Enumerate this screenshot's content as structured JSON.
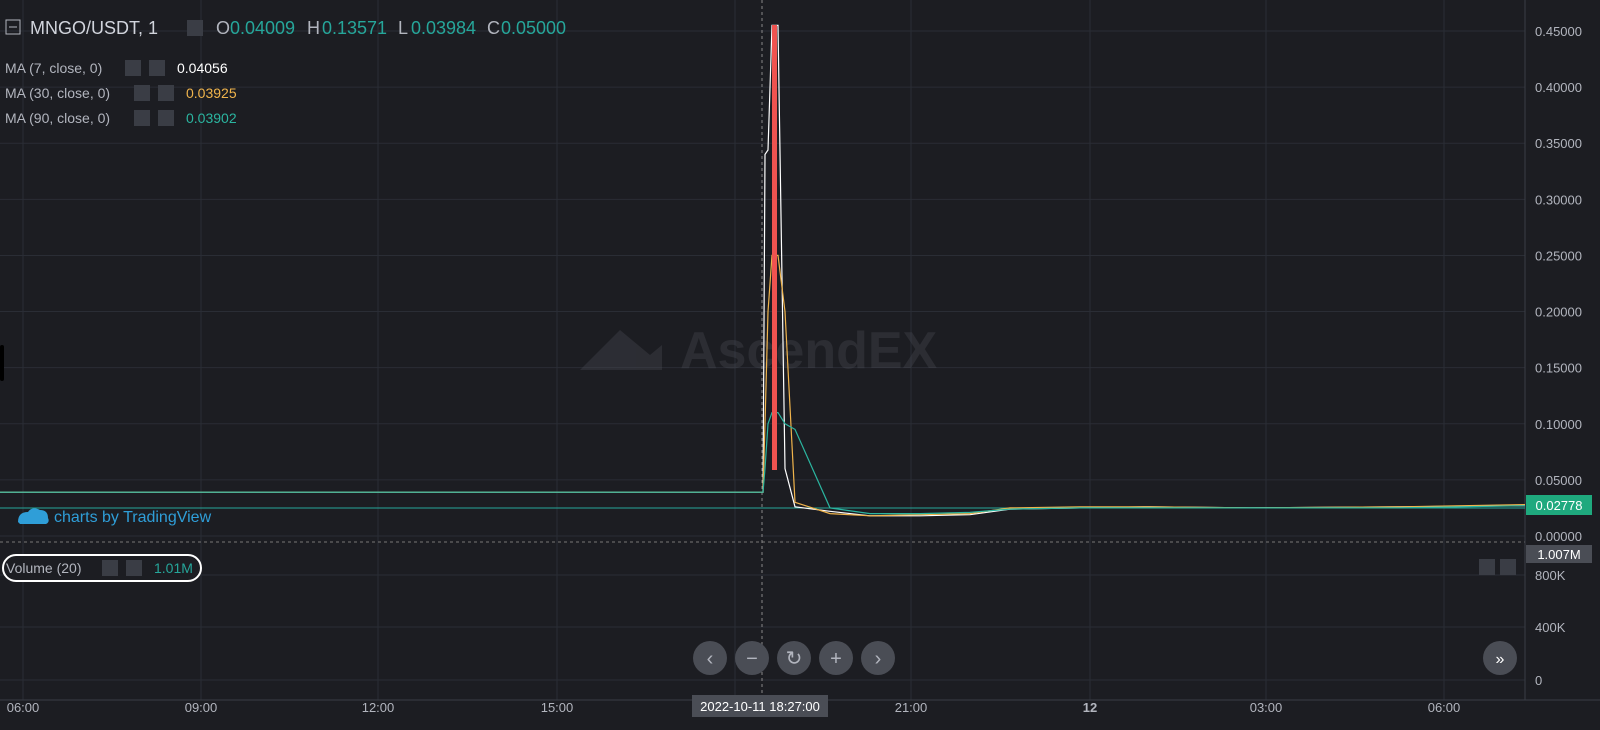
{
  "header": {
    "symbol": "MNGO/USDT, 1",
    "o_label": "O",
    "o_value": "0.04009",
    "h_label": "H",
    "h_value": "0.13571",
    "l_label": "L",
    "l_value": "0.03984",
    "c_label": "C",
    "c_value": "0.05000"
  },
  "indicators": [
    {
      "label": "MA (7, close, 0)",
      "value": "0.04056",
      "color": "#ffffff"
    },
    {
      "label": "MA (30, close, 0)",
      "value": "0.03925",
      "color": "#f0b44c"
    },
    {
      "label": "MA (90, close, 0)",
      "value": "0.03902",
      "color": "#2bb5a0"
    }
  ],
  "volume": {
    "label": "Volume (20)",
    "value": "1.01M",
    "last_marker": "1.007M"
  },
  "watermark": "AscendEX",
  "branding": "charts by TradingView",
  "crosshair_time": "2022-10-11 18:27:00",
  "last_price": "0.02778",
  "colors": {
    "up": "#26a69a",
    "down": "#ef5350",
    "price_badge": "#1fa97e",
    "bg": "#1c1d22"
  },
  "nav_buttons": [
    "chevron-left-icon",
    "minus-icon",
    "reset-icon",
    "plus-icon",
    "chevron-right-icon"
  ],
  "chart_data": {
    "type": "line",
    "price_axis": {
      "ticks": [
        "0.45000",
        "0.40000",
        "0.35000",
        "0.30000",
        "0.25000",
        "0.20000",
        "0.15000",
        "0.10000",
        "0.05000",
        "0.00000"
      ],
      "ylim": [
        0,
        0.45
      ]
    },
    "volume_axis": {
      "ticks": [
        "800K",
        "400K",
        "0"
      ]
    },
    "time_axis": {
      "ticks": [
        "06:00",
        "09:00",
        "12:00",
        "15:00",
        "18:00",
        "21:00",
        "12",
        "03:00",
        "06:00"
      ]
    },
    "series": [
      {
        "name": "MA (7, close, 0)",
        "color": "#ffffff",
        "values": [
          0.039,
          0.039,
          0.039,
          0.039,
          0.039,
          0.039,
          0.34,
          0.344,
          0.455,
          0.455,
          0.06,
          0.026,
          0.022,
          0.018,
          0.018,
          0.019,
          0.024,
          0.025,
          0.026,
          0.025,
          0.026,
          0.027
        ]
      },
      {
        "name": "MA (30, close, 0)",
        "color": "#f0b44c",
        "values": [
          0.039,
          0.039,
          0.039,
          0.039,
          0.039,
          0.039,
          0.1,
          0.2,
          0.25,
          0.25,
          0.2,
          0.03,
          0.02,
          0.018,
          0.019,
          0.02,
          0.025,
          0.026,
          0.026,
          0.025,
          0.026,
          0.028
        ]
      },
      {
        "name": "MA (90, close, 0)",
        "color": "#2bb5a0",
        "values": [
          0.039,
          0.039,
          0.039,
          0.039,
          0.039,
          0.039,
          0.06,
          0.1,
          0.11,
          0.11,
          0.1,
          0.095,
          0.025,
          0.02,
          0.02,
          0.021,
          0.024,
          0.025,
          0.025,
          0.025,
          0.025,
          0.027
        ]
      }
    ]
  }
}
